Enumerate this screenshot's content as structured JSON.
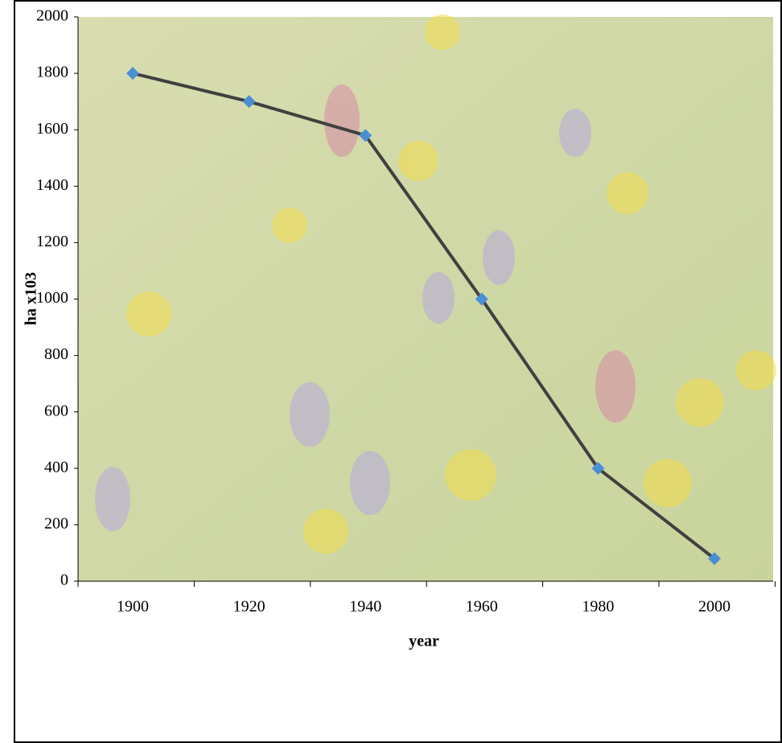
{
  "chart_data": {
    "type": "line",
    "x_label": "year",
    "y_label": "ha x103",
    "categories": [
      "1900",
      "1920",
      "1940",
      "1960",
      "1980",
      "2000"
    ],
    "series": [
      {
        "color": "#404040",
        "marker_color": "#4a8fd4",
        "values": [
          1800,
          1700,
          1580,
          1000,
          400,
          80
        ]
      }
    ],
    "ylim": [
      0,
      2000
    ],
    "yticks": [
      0,
      200,
      400,
      600,
      800,
      1000,
      1200,
      1400,
      1600,
      1800,
      2000
    ]
  }
}
